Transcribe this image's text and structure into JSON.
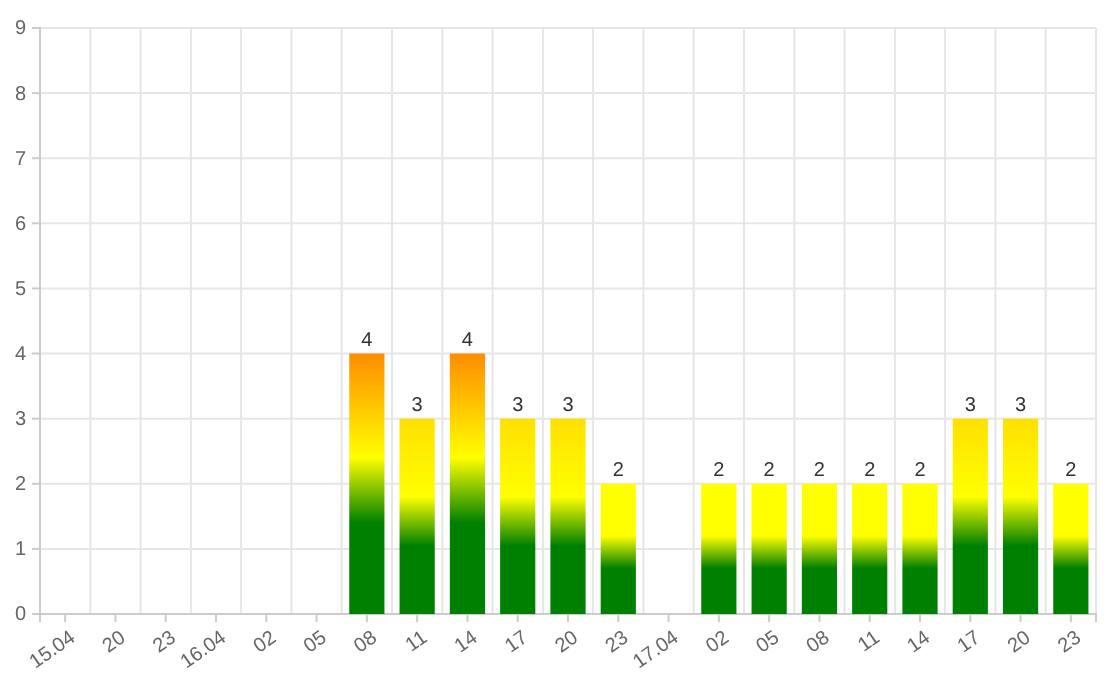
{
  "chart_data": {
    "type": "bar",
    "categories": [
      "15.04",
      "20",
      "23",
      "16.04",
      "02",
      "05",
      "08",
      "11",
      "14",
      "17",
      "20",
      "23",
      "17.04",
      "02",
      "05",
      "08",
      "11",
      "14",
      "17",
      "20",
      "23"
    ],
    "values": [
      null,
      null,
      null,
      null,
      null,
      null,
      4,
      3,
      4,
      3,
      3,
      2,
      null,
      2,
      2,
      2,
      2,
      2,
      3,
      3,
      2
    ],
    "colors": [
      null,
      null,
      null,
      null,
      null,
      null,
      "#ff8c00",
      "#ffe000",
      "#ff8c00",
      "#ffe000",
      "#ffe000",
      "#ffff00",
      null,
      "#ffff00",
      "#ffff00",
      "#ffff00",
      "#ffff00",
      "#ffff00",
      "#ffe000",
      "#ffe000",
      "#ffff00"
    ],
    "ylim": [
      0,
      9
    ],
    "yticks": [
      0,
      1,
      2,
      3,
      4,
      5,
      6,
      7,
      8,
      9
    ],
    "grid": true,
    "data_labels": true
  }
}
